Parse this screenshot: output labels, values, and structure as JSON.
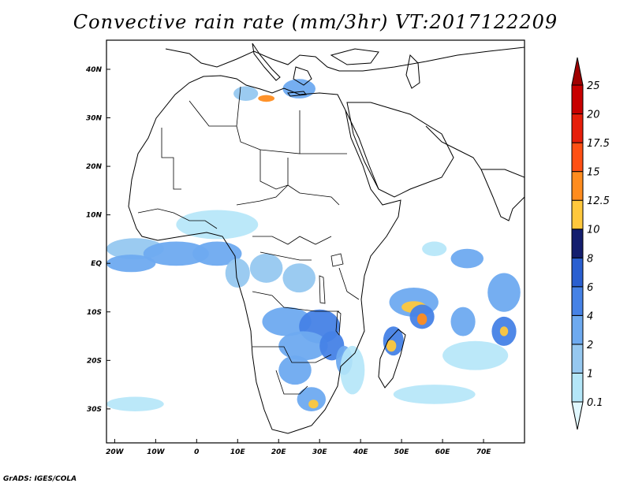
{
  "title": "Convective rain rate (mm/3hr) VT:2017122209",
  "footer": "GrADS: IGES/COLA",
  "map": {
    "lon_range": [
      -22,
      80
    ],
    "lat_range": [
      -37,
      46
    ],
    "lon_ticks": [
      {
        "value": -20,
        "label": "20W"
      },
      {
        "value": -10,
        "label": "10W"
      },
      {
        "value": 0,
        "label": "0"
      },
      {
        "value": 10,
        "label": "10E"
      },
      {
        "value": 20,
        "label": "20E"
      },
      {
        "value": 30,
        "label": "30E"
      },
      {
        "value": 40,
        "label": "40E"
      },
      {
        "value": 50,
        "label": "50E"
      },
      {
        "value": 60,
        "label": "60E"
      },
      {
        "value": 70,
        "label": "70E"
      }
    ],
    "lat_ticks": [
      {
        "value": 40,
        "label": "40N"
      },
      {
        "value": 30,
        "label": "30N"
      },
      {
        "value": 20,
        "label": "20N"
      },
      {
        "value": 10,
        "label": "10N"
      },
      {
        "value": 0,
        "label": "EQ"
      },
      {
        "value": -10,
        "label": "10S"
      },
      {
        "value": -20,
        "label": "20S"
      },
      {
        "value": -30,
        "label": "30S"
      }
    ]
  },
  "colorbar": {
    "levels": [
      "0.1",
      "1",
      "2",
      "4",
      "6",
      "8",
      "10",
      "12.5",
      "15",
      "17.5",
      "20",
      "25"
    ],
    "colors": [
      "#e1f8ff",
      "#b4e6f8",
      "#96c8f0",
      "#6eaaf0",
      "#4682e6",
      "#2a5fd0",
      "#141e6e",
      "#ffc83c",
      "#ff8c1e",
      "#ff5014",
      "#e61e0a",
      "#c80000",
      "#a00000"
    ]
  },
  "rain_cells": [
    {
      "lon": -15,
      "lat": 3,
      "rx": 7,
      "ry": 2.2,
      "level": 2
    },
    {
      "lon": -5,
      "lat": 2,
      "rx": 8,
      "ry": 2.5,
      "level": 3
    },
    {
      "lon": 5,
      "lat": 2,
      "rx": 6,
      "ry": 2.5,
      "level": 3
    },
    {
      "lon": -16,
      "lat": 0,
      "rx": 6,
      "ry": 1.8,
      "level": 3
    },
    {
      "lon": 10,
      "lat": -2,
      "rx": 3,
      "ry": 3,
      "level": 2
    },
    {
      "lon": 17,
      "lat": -1,
      "rx": 4,
      "ry": 3,
      "level": 2
    },
    {
      "lon": 25,
      "lat": -3,
      "rx": 4,
      "ry": 3,
      "level": 2
    },
    {
      "lon": 22,
      "lat": -12,
      "rx": 6,
      "ry": 3,
      "level": 3
    },
    {
      "lon": 30,
      "lat": -13,
      "rx": 5,
      "ry": 3.5,
      "level": 4
    },
    {
      "lon": 26,
      "lat": -17,
      "rx": 6,
      "ry": 3,
      "level": 3
    },
    {
      "lon": 33,
      "lat": -17,
      "rx": 3,
      "ry": 3,
      "level": 4
    },
    {
      "lon": 24,
      "lat": -22,
      "rx": 4,
      "ry": 3,
      "level": 3
    },
    {
      "lon": 28,
      "lat": -28,
      "rx": 3.5,
      "ry": 2.5,
      "level": 3
    },
    {
      "lon": 28.5,
      "lat": -29,
      "rx": 1.2,
      "ry": 0.9,
      "level": 7
    },
    {
      "lon": 36,
      "lat": -20,
      "rx": 2,
      "ry": 3,
      "level": 3
    },
    {
      "lon": 48,
      "lat": -16,
      "rx": 2.5,
      "ry": 3,
      "level": 4
    },
    {
      "lon": 47.5,
      "lat": -17,
      "rx": 1.2,
      "ry": 1.2,
      "level": 7
    },
    {
      "lon": 53,
      "lat": -8,
      "rx": 6,
      "ry": 3,
      "level": 3
    },
    {
      "lon": 53,
      "lat": -9,
      "rx": 3,
      "ry": 1.2,
      "level": 7
    },
    {
      "lon": 55,
      "lat": -11,
      "rx": 3,
      "ry": 2.5,
      "level": 4
    },
    {
      "lon": 55,
      "lat": -11.5,
      "rx": 1.2,
      "ry": 1.2,
      "level": 8
    },
    {
      "lon": 66,
      "lat": 1,
      "rx": 4,
      "ry": 2,
      "level": 3
    },
    {
      "lon": 65,
      "lat": -12,
      "rx": 3,
      "ry": 3,
      "level": 3
    },
    {
      "lon": 75,
      "lat": -6,
      "rx": 4,
      "ry": 4,
      "level": 3
    },
    {
      "lon": 75,
      "lat": -14,
      "rx": 3,
      "ry": 3,
      "level": 4
    },
    {
      "lon": 75,
      "lat": -14,
      "rx": 1,
      "ry": 1,
      "level": 7
    },
    {
      "lon": 17,
      "lat": 34,
      "rx": 2,
      "ry": 0.7,
      "level": 8
    },
    {
      "lon": 25,
      "lat": 36,
      "rx": 4,
      "ry": 2,
      "level": 3
    },
    {
      "lon": 12,
      "lat": 35,
      "rx": 3,
      "ry": 1.5,
      "level": 2
    },
    {
      "lon": 58,
      "lat": 3,
      "rx": 3,
      "ry": 1.5,
      "level": 1
    },
    {
      "lon": -15,
      "lat": -29,
      "rx": 7,
      "ry": 1.5,
      "level": 1
    },
    {
      "lon": 58,
      "lat": -27,
      "rx": 10,
      "ry": 2,
      "level": 1
    },
    {
      "lon": 68,
      "lat": -19,
      "rx": 8,
      "ry": 3,
      "level": 1
    },
    {
      "lon": 38,
      "lat": -22,
      "rx": 3,
      "ry": 5,
      "level": 1
    },
    {
      "lon": 5,
      "lat": 8,
      "rx": 10,
      "ry": 3,
      "level": 1
    }
  ]
}
